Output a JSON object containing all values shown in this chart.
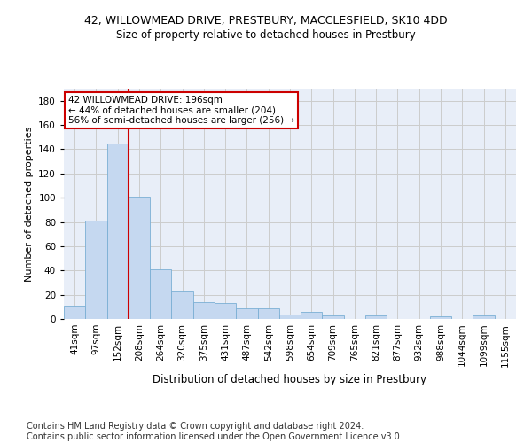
{
  "title_line1": "42, WILLOWMEAD DRIVE, PRESTBURY, MACCLESFIELD, SK10 4DD",
  "title_line2": "Size of property relative to detached houses in Prestbury",
  "xlabel": "Distribution of detached houses by size in Prestbury",
  "ylabel": "Number of detached properties",
  "bar_labels": [
    "41sqm",
    "97sqm",
    "152sqm",
    "208sqm",
    "264sqm",
    "320sqm",
    "375sqm",
    "431sqm",
    "487sqm",
    "542sqm",
    "598sqm",
    "654sqm",
    "709sqm",
    "765sqm",
    "821sqm",
    "877sqm",
    "932sqm",
    "988sqm",
    "1044sqm",
    "1099sqm",
    "1155sqm"
  ],
  "bar_values": [
    11,
    81,
    145,
    101,
    41,
    23,
    14,
    13,
    9,
    9,
    4,
    6,
    3,
    0,
    3,
    0,
    0,
    2,
    0,
    3,
    0
  ],
  "bar_color": "#c5d8f0",
  "bar_edge_color": "#7aafd4",
  "vline_color": "#cc0000",
  "annotation_text": "42 WILLOWMEAD DRIVE: 196sqm\n← 44% of detached houses are smaller (204)\n56% of semi-detached houses are larger (256) →",
  "annotation_box_color": "#ffffff",
  "annotation_box_edge": "#cc0000",
  "ylim": [
    0,
    190
  ],
  "yticks": [
    0,
    20,
    40,
    60,
    80,
    100,
    120,
    140,
    160,
    180
  ],
  "grid_color": "#cccccc",
  "bg_color": "#e8eef8",
  "footer": "Contains HM Land Registry data © Crown copyright and database right 2024.\nContains public sector information licensed under the Open Government Licence v3.0.",
  "footer_fontsize": 7.0,
  "title1_fontsize": 9.0,
  "title2_fontsize": 8.5,
  "ylabel_fontsize": 8.0,
  "xlabel_fontsize": 8.5,
  "tick_fontsize": 7.5,
  "ann_fontsize": 7.5
}
